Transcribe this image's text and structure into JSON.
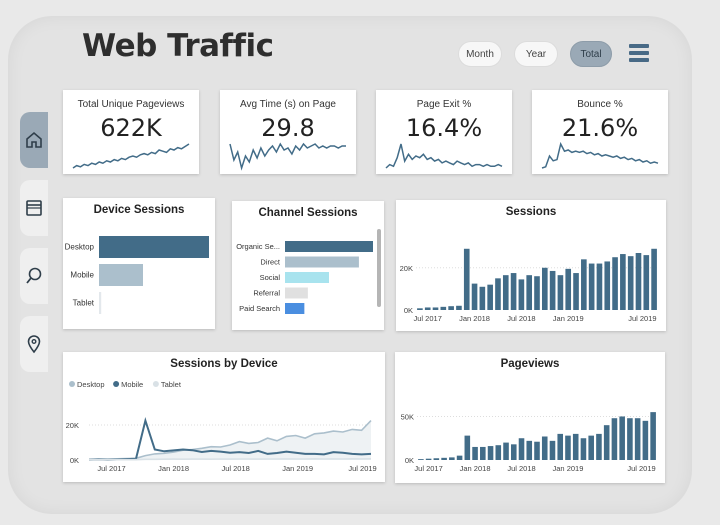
{
  "title": "Web Traffic",
  "filters": [
    {
      "label": "Month",
      "active": false
    },
    {
      "label": "Year",
      "active": false
    },
    {
      "label": "Total",
      "active": true
    }
  ],
  "nav_icons": [
    "home-icon",
    "browser-window-icon",
    "search-icon",
    "location-pin-icon"
  ],
  "colors": {
    "dark": "#426c88",
    "mid": "#abbfcc",
    "light": "#d9e1e6",
    "accent": "#9aa9b6",
    "cyan": "#a8e3ee",
    "blue": "#4a8ee0",
    "grey": "#e0e0e0"
  },
  "kpis": [
    {
      "label": "Total Unique Pageviews",
      "value": "622K",
      "spark": [
        5,
        7,
        6,
        8,
        7,
        9,
        8,
        10,
        9,
        11,
        10,
        12,
        11,
        13,
        12,
        14,
        15,
        14,
        16,
        17,
        16,
        18,
        17,
        20,
        19,
        18,
        21,
        20,
        22,
        21,
        23,
        25
      ]
    },
    {
      "label": "Avg Time (s) on Page",
      "value": "29.8",
      "spark": [
        18,
        10,
        14,
        6,
        12,
        9,
        15,
        11,
        16,
        12,
        15,
        17,
        14,
        18,
        15,
        16,
        13,
        17,
        15,
        18,
        16,
        17,
        18,
        16,
        17,
        16,
        17,
        17,
        16,
        17,
        17
      ]
    },
    {
      "label": "Page Exit %",
      "value": "16.4%",
      "spark": [
        4,
        6,
        5,
        10,
        18,
        8,
        12,
        9,
        11,
        10,
        12,
        9,
        10,
        8,
        9,
        7,
        8,
        7,
        6,
        8,
        7,
        6,
        7,
        5,
        6,
        6,
        5,
        6,
        5,
        5,
        6,
        5
      ]
    },
    {
      "label": "Bounce %",
      "value": "21.6%",
      "spark": [
        4,
        5,
        14,
        10,
        11,
        24,
        18,
        19,
        17,
        18,
        17,
        18,
        16,
        17,
        15,
        16,
        14,
        15,
        14,
        13,
        14,
        12,
        13,
        11,
        12,
        10,
        11,
        9,
        10,
        8,
        9,
        8
      ]
    }
  ],
  "chart_data": [
    {
      "type": "bar",
      "title": "Device Sessions",
      "categories": [
        "Desktop",
        "Mobile",
        "Tablet"
      ],
      "values": [
        100,
        40,
        2
      ],
      "colors": [
        "#426c88",
        "#abbfcc",
        "#e3e8ec"
      ]
    },
    {
      "type": "bar",
      "title": "Channel Sessions",
      "categories": [
        "Organic Se...",
        "Direct",
        "Social",
        "Referral",
        "Paid Search"
      ],
      "values": [
        100,
        84,
        50,
        26,
        22
      ],
      "colors": [
        "#426c88",
        "#abbfcc",
        "#a8e3ee",
        "#e0e0e0",
        "#4a8ee0"
      ]
    },
    {
      "type": "bar",
      "title": "Sessions",
      "x_ticks": [
        "Jul 2017",
        "Jan 2018",
        "Jul 2018",
        "Jan 2019",
        "Jul 2019"
      ],
      "y_ticks": [
        "0K",
        "20K"
      ],
      "ylim": [
        0,
        36000
      ],
      "values": [
        800,
        1200,
        1200,
        1500,
        1800,
        2000,
        29000,
        12500,
        11000,
        12000,
        15000,
        16500,
        17500,
        14500,
        16500,
        16000,
        20000,
        18500,
        16500,
        19500,
        17500,
        24000,
        22000,
        22000,
        23000,
        25000,
        26500,
        25500,
        27000,
        26000,
        29000
      ]
    },
    {
      "type": "line",
      "title": "Sessions by Device",
      "legend": [
        "Desktop",
        "Mobile",
        "Tablet"
      ],
      "x_ticks": [
        "Jul 2017",
        "Jan 2018",
        "Jul 2018",
        "Jan 2019",
        "Jul 2019"
      ],
      "y_ticks": [
        "0K",
        "20K"
      ],
      "ylim": [
        0,
        32000
      ],
      "series": [
        {
          "name": "Desktop",
          "color": "#abbfcc",
          "values": [
            300,
            500,
            500,
            700,
            800,
            1000,
            2500,
            3500,
            3800,
            4500,
            5600,
            6000,
            6700,
            7600,
            7400,
            8600,
            10500,
            9500,
            10000,
            12500,
            11000,
            13500,
            14000,
            12500,
            15000,
            15500,
            16500,
            16000,
            17500,
            17000,
            22500
          ]
        },
        {
          "name": "Mobile",
          "color": "#426c88",
          "values": [
            200,
            300,
            200,
            300,
            500,
            700,
            22500,
            6000,
            5000,
            5500,
            6000,
            5600,
            4600,
            5200,
            4800,
            4200,
            4500,
            4000,
            5200,
            3500,
            4000,
            4800,
            4200,
            3500,
            3500,
            3200,
            4500,
            4200,
            3500,
            3200,
            3500
          ]
        },
        {
          "name": "Tablet",
          "color": "#d9e1e6",
          "values": [
            100,
            100,
            150,
            150,
            200,
            200,
            400,
            400,
            450,
            500,
            450,
            500,
            500,
            450,
            550,
            500,
            600,
            550,
            500,
            600,
            550,
            650,
            600,
            550,
            700,
            600,
            650,
            600,
            700,
            650,
            700
          ]
        }
      ]
    },
    {
      "type": "bar",
      "title": "Pageviews",
      "x_ticks": [
        "Jul 2017",
        "Jan 2018",
        "Jul 2018",
        "Jan 2019",
        "Jul 2019"
      ],
      "y_ticks": [
        "0K",
        "50K"
      ],
      "ylim": [
        0,
        85000
      ],
      "values": [
        1000,
        1500,
        2000,
        2500,
        3000,
        5000,
        28000,
        15000,
        15000,
        16000,
        17000,
        20000,
        18000,
        25000,
        22000,
        21000,
        27000,
        22000,
        30000,
        28000,
        30000,
        25000,
        28000,
        30000,
        40000,
        48000,
        50000,
        48000,
        48000,
        45000,
        55000
      ]
    }
  ]
}
